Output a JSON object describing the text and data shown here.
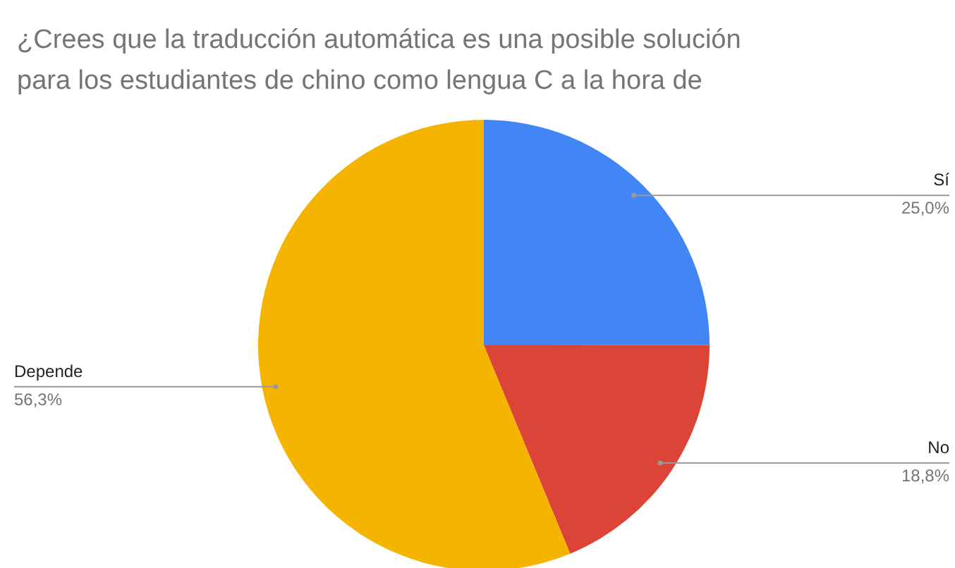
{
  "chart_data": {
    "type": "pie",
    "title": "¿Crees que la traducción automática es una posible solución\npara los estudiantes de chino como lengua C a la hora de",
    "categories": [
      "Sí",
      "No",
      "Depende"
    ],
    "values": [
      25.0,
      18.8,
      56.3
    ],
    "colors": [
      "#4285f4",
      "#db4437",
      "#f4b400"
    ],
    "value_labels": [
      "25,0%",
      "18,8%",
      "56,3%"
    ]
  }
}
